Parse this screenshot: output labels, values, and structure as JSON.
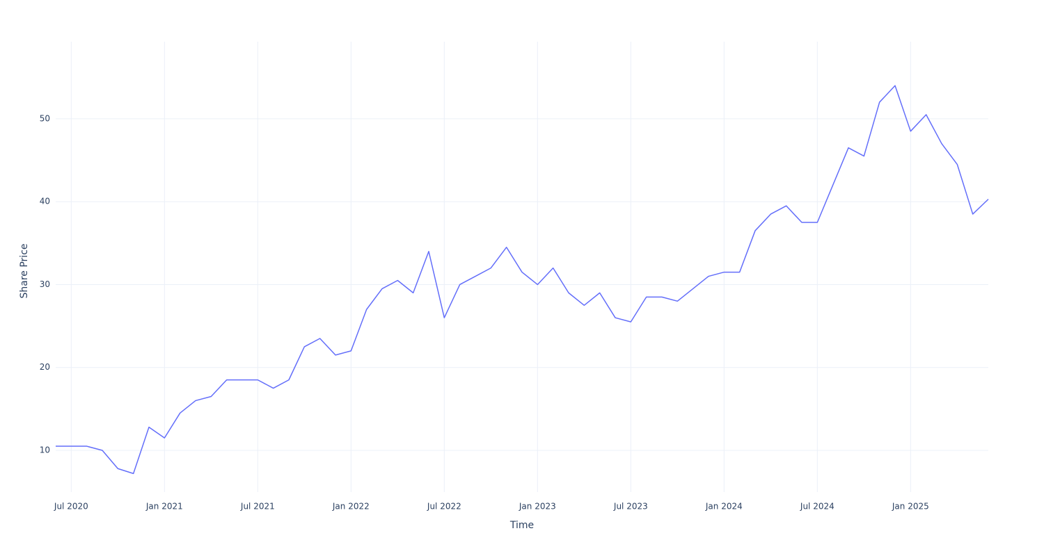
{
  "chart_data": {
    "type": "line",
    "x_label": "Time",
    "y_label": "Share Price",
    "x": [
      "2020-06",
      "2020-07",
      "2020-08",
      "2020-09",
      "2020-10",
      "2020-11",
      "2020-12",
      "2021-01",
      "2021-02",
      "2021-03",
      "2021-04",
      "2021-05",
      "2021-06",
      "2021-07",
      "2021-08",
      "2021-09",
      "2021-10",
      "2021-11",
      "2021-12",
      "2022-01",
      "2022-02",
      "2022-03",
      "2022-04",
      "2022-05",
      "2022-06",
      "2022-07",
      "2022-08",
      "2022-09",
      "2022-10",
      "2022-11",
      "2022-12",
      "2023-01",
      "2023-02",
      "2023-03",
      "2023-04",
      "2023-05",
      "2023-06",
      "2023-07",
      "2023-08",
      "2023-09",
      "2023-10",
      "2023-11",
      "2023-12",
      "2024-01",
      "2024-02",
      "2024-03",
      "2024-04",
      "2024-05",
      "2024-06",
      "2024-07",
      "2024-08",
      "2024-09",
      "2024-10",
      "2024-11",
      "2024-12",
      "2025-01",
      "2025-02",
      "2025-03",
      "2025-04",
      "2025-05",
      "2025-06"
    ],
    "values": [
      10.5,
      10.5,
      10.5,
      10.0,
      7.8,
      7.2,
      12.8,
      11.5,
      14.5,
      16.0,
      16.5,
      18.5,
      18.5,
      18.5,
      17.5,
      18.5,
      22.5,
      23.5,
      21.5,
      22.0,
      27.0,
      29.5,
      30.5,
      29.0,
      34.0,
      26.0,
      30.0,
      31.0,
      32.0,
      34.5,
      31.5,
      30.0,
      32.0,
      29.0,
      27.5,
      29.0,
      26.0,
      25.5,
      28.5,
      28.5,
      28.0,
      29.5,
      31.0,
      31.5,
      31.5,
      36.5,
      38.5,
      39.5,
      37.5,
      37.5,
      42.0,
      46.5,
      45.5,
      52.0,
      54.0,
      48.5,
      50.5,
      47.0,
      44.5,
      38.5,
      40.3
    ],
    "color": "#636efa",
    "xlim": [
      "2020-06",
      "2025-06"
    ],
    "xticks": [
      {
        "value": "2020-07",
        "label": "Jul 2020"
      },
      {
        "value": "2021-01",
        "label": "Jan 2021"
      },
      {
        "value": "2021-07",
        "label": "Jul 2021"
      },
      {
        "value": "2022-01",
        "label": "Jan 2022"
      },
      {
        "value": "2022-07",
        "label": "Jul 2022"
      },
      {
        "value": "2023-01",
        "label": "Jan 2023"
      },
      {
        "value": "2023-07",
        "label": "Jul 2023"
      },
      {
        "value": "2024-01",
        "label": "Jan 2024"
      },
      {
        "value": "2024-07",
        "label": "Jul 2024"
      },
      {
        "value": "2025-01",
        "label": "Jan 2025"
      }
    ],
    "ylim": [
      4.97,
      59.3
    ],
    "yticks": [
      10,
      20,
      30,
      40,
      50
    ],
    "grid": true
  }
}
